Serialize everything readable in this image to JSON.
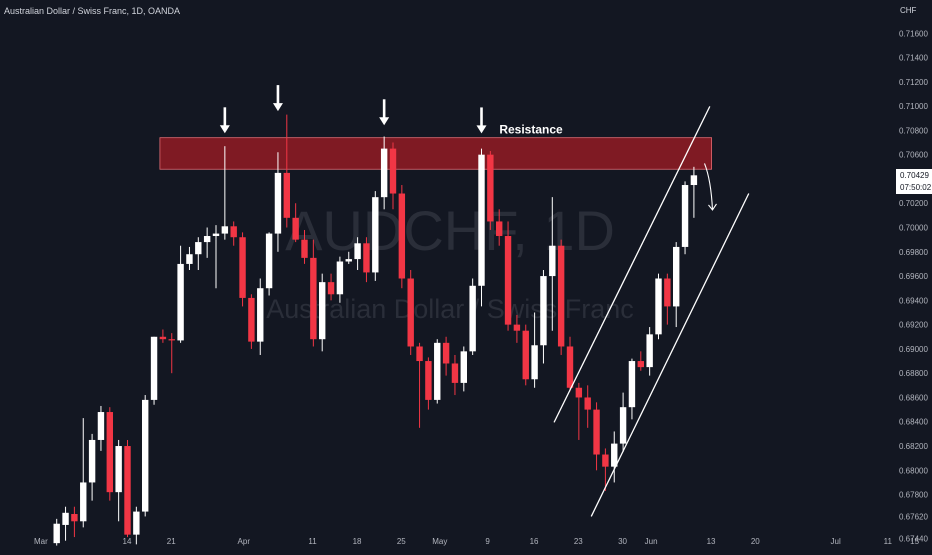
{
  "header": {
    "symbol_line": "Australian Dollar / Swiss Franc, 1D, OANDA",
    "currency": "CHF"
  },
  "watermark": {
    "big": "AUDCHF, 1D",
    "small": "Australian Dollar / Swiss Franc"
  },
  "price_tag": {
    "price": "0.70429",
    "countdown": "07:50:02"
  },
  "colors": {
    "background": "#131722",
    "up": "#ffffff",
    "down": "#f23645",
    "resistance_fill": "#8c1b23",
    "resistance_border": "#e06a72",
    "annotation": "#ffffff",
    "axis_text": "#b2b5be"
  },
  "chart_data": {
    "type": "candlestick",
    "title": "Australian Dollar / Swiss Franc, 1D, OANDA",
    "ylabel": "CHF",
    "ylim": [
      0.6736,
      0.718
    ],
    "y_ticks": [
      "0.71600",
      "0.71400",
      "0.71200",
      "0.71000",
      "0.70800",
      "0.70600",
      "0.70400",
      "0.70200",
      "0.70000",
      "0.69800",
      "0.69600",
      "0.69400",
      "0.69200",
      "0.69000",
      "0.68800",
      "0.68600",
      "0.68400",
      "0.68200",
      "0.68000",
      "0.67800",
      "0.67620",
      "0.67440"
    ],
    "x_ticks": [
      {
        "label": "Mar",
        "slot": 0
      },
      {
        "label": "14",
        "slot": 10
      },
      {
        "label": "21",
        "slot": 15
      },
      {
        "label": "Apr",
        "slot": 23
      },
      {
        "label": "11",
        "slot": 31
      },
      {
        "label": "18",
        "slot": 36
      },
      {
        "label": "25",
        "slot": 41
      },
      {
        "label": "May",
        "slot": 45
      },
      {
        "label": "9",
        "slot": 51
      },
      {
        "label": "16",
        "slot": 56
      },
      {
        "label": "23",
        "slot": 61
      },
      {
        "label": "30",
        "slot": 66
      },
      {
        "label": "Jun",
        "slot": 69
      },
      {
        "label": "13",
        "slot": 76
      },
      {
        "label": "20",
        "slot": 81
      },
      {
        "label": "Jul",
        "slot": 90
      },
      {
        "label": "11",
        "slot": 96
      },
      {
        "label": "15",
        "slot": 99
      }
    ],
    "candles": [
      {
        "slot": 2,
        "o": 0.674,
        "h": 0.676,
        "l": 0.6738,
        "c": 0.6756
      },
      {
        "slot": 3,
        "o": 0.6755,
        "h": 0.677,
        "l": 0.6742,
        "c": 0.6765
      },
      {
        "slot": 4,
        "o": 0.6764,
        "h": 0.677,
        "l": 0.6745,
        "c": 0.6758
      },
      {
        "slot": 5,
        "o": 0.6758,
        "h": 0.6843,
        "l": 0.6753,
        "c": 0.679
      },
      {
        "slot": 6,
        "o": 0.679,
        "h": 0.683,
        "l": 0.6775,
        "c": 0.6825
      },
      {
        "slot": 7,
        "o": 0.6825,
        "h": 0.6853,
        "l": 0.6816,
        "c": 0.6848
      },
      {
        "slot": 8,
        "o": 0.6848,
        "h": 0.6852,
        "l": 0.6775,
        "c": 0.6782
      },
      {
        "slot": 9,
        "o": 0.6782,
        "h": 0.6825,
        "l": 0.6758,
        "c": 0.682
      },
      {
        "slot": 10,
        "o": 0.682,
        "h": 0.6825,
        "l": 0.6745,
        "c": 0.6747
      },
      {
        "slot": 11,
        "o": 0.6747,
        "h": 0.677,
        "l": 0.6739,
        "c": 0.6766
      },
      {
        "slot": 12,
        "o": 0.6766,
        "h": 0.6862,
        "l": 0.6762,
        "c": 0.6858
      },
      {
        "slot": 13,
        "o": 0.6858,
        "h": 0.691,
        "l": 0.6854,
        "c": 0.691
      },
      {
        "slot": 14,
        "o": 0.691,
        "h": 0.6916,
        "l": 0.6905,
        "c": 0.6908
      },
      {
        "slot": 15,
        "o": 0.6908,
        "h": 0.6913,
        "l": 0.688,
        "c": 0.6907
      },
      {
        "slot": 16,
        "o": 0.6907,
        "h": 0.6985,
        "l": 0.6905,
        "c": 0.697
      },
      {
        "slot": 17,
        "o": 0.697,
        "h": 0.6984,
        "l": 0.6965,
        "c": 0.6978
      },
      {
        "slot": 18,
        "o": 0.6978,
        "h": 0.6992,
        "l": 0.6965,
        "c": 0.6988
      },
      {
        "slot": 19,
        "o": 0.6988,
        "h": 0.7,
        "l": 0.6975,
        "c": 0.6993
      },
      {
        "slot": 20,
        "o": 0.6993,
        "h": 0.7002,
        "l": 0.695,
        "c": 0.6995
      },
      {
        "slot": 21,
        "o": 0.6995,
        "h": 0.7067,
        "l": 0.699,
        "c": 0.7001
      },
      {
        "slot": 22,
        "o": 0.7001,
        "h": 0.7005,
        "l": 0.6985,
        "c": 0.6992
      },
      {
        "slot": 23,
        "o": 0.6992,
        "h": 0.6996,
        "l": 0.6935,
        "c": 0.6942
      },
      {
        "slot": 24,
        "o": 0.6942,
        "h": 0.6945,
        "l": 0.69,
        "c": 0.6906
      },
      {
        "slot": 25,
        "o": 0.6906,
        "h": 0.6958,
        "l": 0.6895,
        "c": 0.695
      },
      {
        "slot": 26,
        "o": 0.695,
        "h": 0.6996,
        "l": 0.6944,
        "c": 0.6995
      },
      {
        "slot": 27,
        "o": 0.6995,
        "h": 0.7062,
        "l": 0.698,
        "c": 0.7045
      },
      {
        "slot": 28,
        "o": 0.7045,
        "h": 0.7093,
        "l": 0.7,
        "c": 0.7008
      },
      {
        "slot": 29,
        "o": 0.7008,
        "h": 0.702,
        "l": 0.6988,
        "c": 0.699
      },
      {
        "slot": 30,
        "o": 0.699,
        "h": 0.6998,
        "l": 0.697,
        "c": 0.6975
      },
      {
        "slot": 31,
        "o": 0.6975,
        "h": 0.699,
        "l": 0.6902,
        "c": 0.6908
      },
      {
        "slot": 32,
        "o": 0.6908,
        "h": 0.6962,
        "l": 0.6898,
        "c": 0.6955
      },
      {
        "slot": 33,
        "o": 0.6955,
        "h": 0.6962,
        "l": 0.694,
        "c": 0.6945
      },
      {
        "slot": 34,
        "o": 0.6945,
        "h": 0.6976,
        "l": 0.6938,
        "c": 0.6972
      },
      {
        "slot": 35,
        "o": 0.6972,
        "h": 0.698,
        "l": 0.697,
        "c": 0.6974
      },
      {
        "slot": 36,
        "o": 0.6974,
        "h": 0.6992,
        "l": 0.6965,
        "c": 0.6987
      },
      {
        "slot": 37,
        "o": 0.6987,
        "h": 0.6992,
        "l": 0.6955,
        "c": 0.6963
      },
      {
        "slot": 38,
        "o": 0.6963,
        "h": 0.703,
        "l": 0.6956,
        "c": 0.7025
      },
      {
        "slot": 39,
        "o": 0.7025,
        "h": 0.7075,
        "l": 0.7015,
        "c": 0.7065
      },
      {
        "slot": 40,
        "o": 0.7065,
        "h": 0.707,
        "l": 0.7015,
        "c": 0.7028
      },
      {
        "slot": 41,
        "o": 0.7028,
        "h": 0.7035,
        "l": 0.695,
        "c": 0.6958
      },
      {
        "slot": 42,
        "o": 0.6958,
        "h": 0.6965,
        "l": 0.6895,
        "c": 0.6902
      },
      {
        "slot": 43,
        "o": 0.6902,
        "h": 0.6905,
        "l": 0.6835,
        "c": 0.689
      },
      {
        "slot": 44,
        "o": 0.689,
        "h": 0.6893,
        "l": 0.685,
        "c": 0.6858
      },
      {
        "slot": 45,
        "o": 0.6858,
        "h": 0.6908,
        "l": 0.6855,
        "c": 0.6905
      },
      {
        "slot": 46,
        "o": 0.6905,
        "h": 0.691,
        "l": 0.6878,
        "c": 0.6888
      },
      {
        "slot": 47,
        "o": 0.6888,
        "h": 0.6895,
        "l": 0.6862,
        "c": 0.6872
      },
      {
        "slot": 48,
        "o": 0.6872,
        "h": 0.6902,
        "l": 0.6865,
        "c": 0.6898
      },
      {
        "slot": 49,
        "o": 0.6898,
        "h": 0.6958,
        "l": 0.6895,
        "c": 0.6952
      },
      {
        "slot": 50,
        "o": 0.6952,
        "h": 0.7065,
        "l": 0.6935,
        "c": 0.706
      },
      {
        "slot": 51,
        "o": 0.706,
        "h": 0.7063,
        "l": 0.6998,
        "c": 0.7005
      },
      {
        "slot": 52,
        "o": 0.7005,
        "h": 0.7015,
        "l": 0.6985,
        "c": 0.6993
      },
      {
        "slot": 53,
        "o": 0.6993,
        "h": 0.7005,
        "l": 0.6915,
        "c": 0.692
      },
      {
        "slot": 54,
        "o": 0.692,
        "h": 0.6928,
        "l": 0.6905,
        "c": 0.6915
      },
      {
        "slot": 55,
        "o": 0.6915,
        "h": 0.692,
        "l": 0.687,
        "c": 0.6875
      },
      {
        "slot": 56,
        "o": 0.6875,
        "h": 0.693,
        "l": 0.6868,
        "c": 0.6903
      },
      {
        "slot": 57,
        "o": 0.6903,
        "h": 0.6965,
        "l": 0.6888,
        "c": 0.696
      },
      {
        "slot": 58,
        "o": 0.696,
        "h": 0.7025,
        "l": 0.6915,
        "c": 0.6985
      },
      {
        "slot": 59,
        "o": 0.6985,
        "h": 0.699,
        "l": 0.6895,
        "c": 0.6902
      },
      {
        "slot": 60,
        "o": 0.6902,
        "h": 0.691,
        "l": 0.6865,
        "c": 0.6868
      },
      {
        "slot": 61,
        "o": 0.6868,
        "h": 0.6872,
        "l": 0.6825,
        "c": 0.686
      },
      {
        "slot": 62,
        "o": 0.686,
        "h": 0.687,
        "l": 0.6835,
        "c": 0.685
      },
      {
        "slot": 63,
        "o": 0.685,
        "h": 0.6856,
        "l": 0.68,
        "c": 0.6813
      },
      {
        "slot": 64,
        "o": 0.6813,
        "h": 0.6818,
        "l": 0.6783,
        "c": 0.6803
      },
      {
        "slot": 65,
        "o": 0.6803,
        "h": 0.6832,
        "l": 0.679,
        "c": 0.6822
      },
      {
        "slot": 66,
        "o": 0.6822,
        "h": 0.6864,
        "l": 0.6815,
        "c": 0.6852
      },
      {
        "slot": 67,
        "o": 0.6852,
        "h": 0.6892,
        "l": 0.6842,
        "c": 0.689
      },
      {
        "slot": 68,
        "o": 0.689,
        "h": 0.6898,
        "l": 0.6882,
        "c": 0.6885
      },
      {
        "slot": 69,
        "o": 0.6885,
        "h": 0.6918,
        "l": 0.6878,
        "c": 0.6912
      },
      {
        "slot": 70,
        "o": 0.6912,
        "h": 0.6962,
        "l": 0.6908,
        "c": 0.6958
      },
      {
        "slot": 71,
        "o": 0.6958,
        "h": 0.6962,
        "l": 0.692,
        "c": 0.6935
      },
      {
        "slot": 72,
        "o": 0.6935,
        "h": 0.6988,
        "l": 0.6918,
        "c": 0.6984
      },
      {
        "slot": 73,
        "o": 0.6984,
        "h": 0.7038,
        "l": 0.6978,
        "c": 0.7035
      },
      {
        "slot": 74,
        "o": 0.7035,
        "h": 0.705,
        "l": 0.7008,
        "c": 0.7043
      }
    ]
  },
  "overlays": {
    "resistance": {
      "label": "Resistance",
      "top": 0.7074,
      "bottom": 0.7048,
      "start_slot": 14,
      "end_slot": 76
    },
    "channel_lines": [
      {
        "from": {
          "slot": 58.2,
          "price": 0.68395
        },
        "to": {
          "slot": 75.8,
          "price": 0.70998
        }
      },
      {
        "from": {
          "slot": 62.4,
          "price": 0.6762
        },
        "to": {
          "slot": 80.2,
          "price": 0.7028
        }
      }
    ],
    "down_arrows": [
      {
        "slot": 21,
        "tip_price": 0.70776
      },
      {
        "slot": 27,
        "tip_price": 0.70959
      },
      {
        "slot": 39,
        "tip_price": 0.70842
      },
      {
        "slot": 50,
        "tip_price": 0.70775
      }
    ],
    "forecast_arrow": {
      "from": {
        "slot": 75.2,
        "price": 0.70528
      },
      "mid": {
        "slot": 75.6,
        "price": 0.7039
      },
      "to": {
        "slot": 76.1,
        "price": 0.70145
      }
    }
  }
}
